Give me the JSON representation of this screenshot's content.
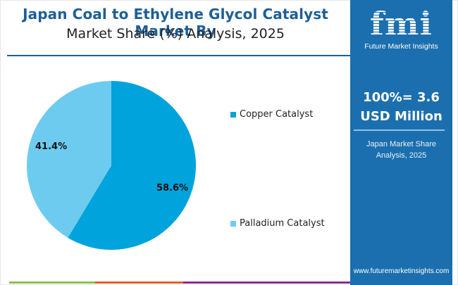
{
  "title": {
    "line1": "Japan Coal to Ethylene Glycol Catalyst Market By",
    "line2": "Market Share (%) Analysis, 2025"
  },
  "chart_data": {
    "type": "pie",
    "title": "Japan Coal to Ethylene Glycol Catalyst Market By Market Share (%) Analysis, 2025",
    "categories": [
      "Copper Catalyst",
      "Palladium Catalyst"
    ],
    "values": [
      58.6,
      41.4
    ],
    "colors": [
      "#00a3dc",
      "#6ecbf0"
    ],
    "labels": [
      "58.6%",
      "41.4%"
    ],
    "legend_position": "right"
  },
  "legend": {
    "items": [
      {
        "label": "Copper Catalyst",
        "color": "#00a3dc"
      },
      {
        "label": "Palladium Catalyst",
        "color": "#6ecbf0"
      }
    ]
  },
  "panel": {
    "logo_text": "fmi",
    "logo_subtitle": "Future Market Insights",
    "total_line1": "100%= 3.6",
    "total_line2": "USD Million",
    "subtitle": "Japan Market Share Analysis, 2025",
    "url": "www.futuremarketinsights.com",
    "color": "#1b6fae"
  },
  "stripes": [
    "#8cc04b",
    "#e0612d",
    "#8b2e8c"
  ]
}
